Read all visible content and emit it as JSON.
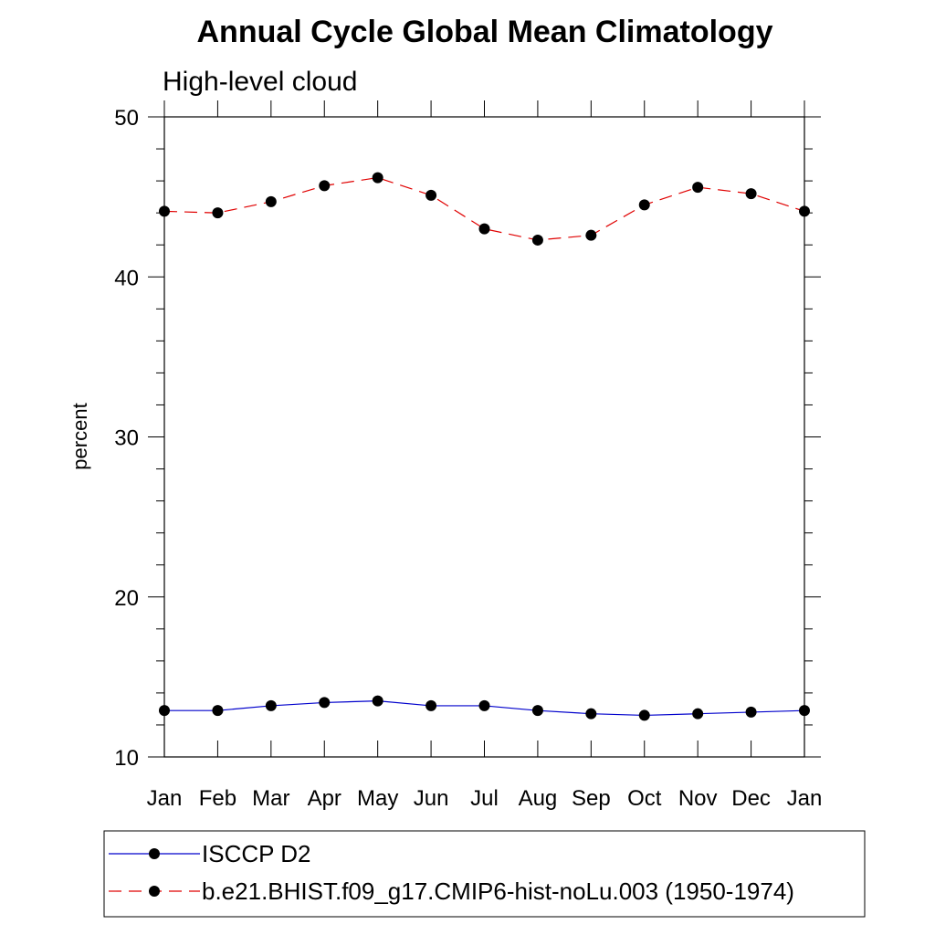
{
  "chart_data": {
    "type": "line",
    "title": "Annual Cycle Global Mean Climatology",
    "subtitle": "High-level cloud",
    "xlabel": "",
    "ylabel": "percent",
    "categories": [
      "Jan",
      "Feb",
      "Mar",
      "Apr",
      "May",
      "Jun",
      "Jul",
      "Aug",
      "Sep",
      "Oct",
      "Nov",
      "Dec",
      "Jan"
    ],
    "ylim": [
      10,
      50
    ],
    "yticks": [
      10,
      20,
      30,
      40,
      50
    ],
    "yminor_step": 2,
    "grid": false,
    "legend_placement": "bottom",
    "series": [
      {
        "name": "ISCCP D2",
        "color": "#0000cc",
        "line_style": "solid",
        "marker": "filled-circle",
        "values": [
          12.9,
          12.9,
          13.2,
          13.4,
          13.5,
          13.2,
          13.2,
          12.9,
          12.7,
          12.6,
          12.7,
          12.8,
          12.9
        ]
      },
      {
        "name": "b.e21.BHIST.f09_g17.CMIP6-hist-noLu.003 (1950-1974)",
        "color": "#e00000",
        "line_style": "dashed",
        "marker": "filled-circle",
        "values": [
          44.1,
          44.0,
          44.7,
          45.7,
          46.2,
          45.1,
          43.0,
          42.3,
          42.6,
          44.5,
          45.6,
          45.2,
          44.1
        ]
      }
    ]
  }
}
